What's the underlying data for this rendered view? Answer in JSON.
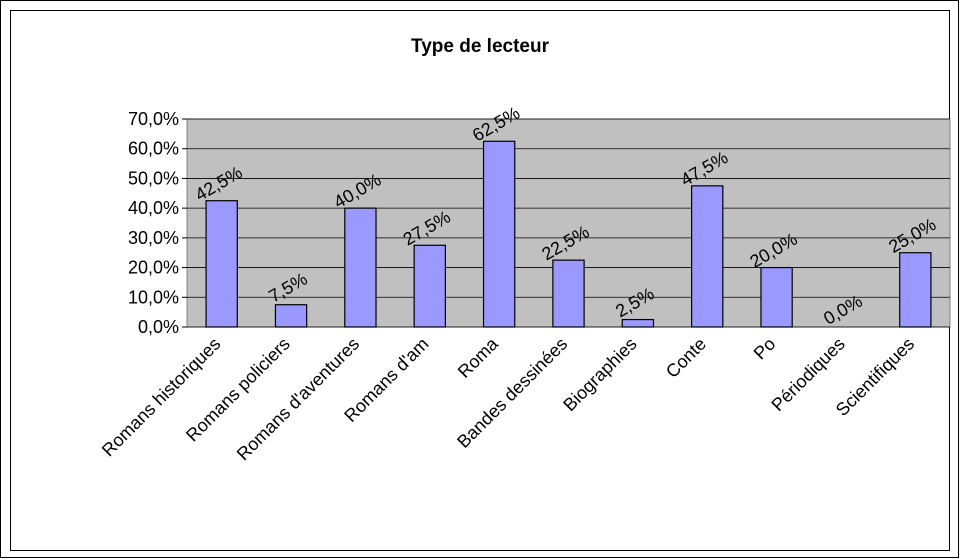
{
  "chart_data": {
    "type": "bar",
    "title": "Type de lecteur",
    "categories": [
      "Romans historiques",
      "Romans policiers",
      "Romans d'aventures",
      "Romans d'am",
      "Roma",
      "Bandes dessinées",
      "Biographies",
      "Conte",
      "Po",
      "Périodiques",
      "Scientifiques"
    ],
    "values": [
      42.5,
      7.5,
      40,
      27.5,
      62.5,
      22.5,
      2.5,
      47.5,
      20,
      0,
      25
    ],
    "value_labels": [
      "42,5%",
      "7,5%",
      "40,0%",
      "27,5%",
      "62,5%",
      "22,5%",
      "2,5%",
      "47,5%",
      "20,0%",
      "0,0%",
      "25,0%"
    ],
    "color": "#9999ff",
    "ylim": [
      0,
      70
    ],
    "yticks": [
      {
        "value": 0,
        "label": "0,0%"
      },
      {
        "value": 10,
        "label": "10,0%"
      },
      {
        "value": 20,
        "label": "20,0%"
      },
      {
        "value": 30,
        "label": "30,0%"
      },
      {
        "value": 40,
        "label": "40,0%"
      },
      {
        "value": 50,
        "label": "50,0%"
      },
      {
        "value": 60,
        "label": "60,0%"
      },
      {
        "value": 70,
        "label": "70,0%"
      }
    ],
    "grid": true
  }
}
